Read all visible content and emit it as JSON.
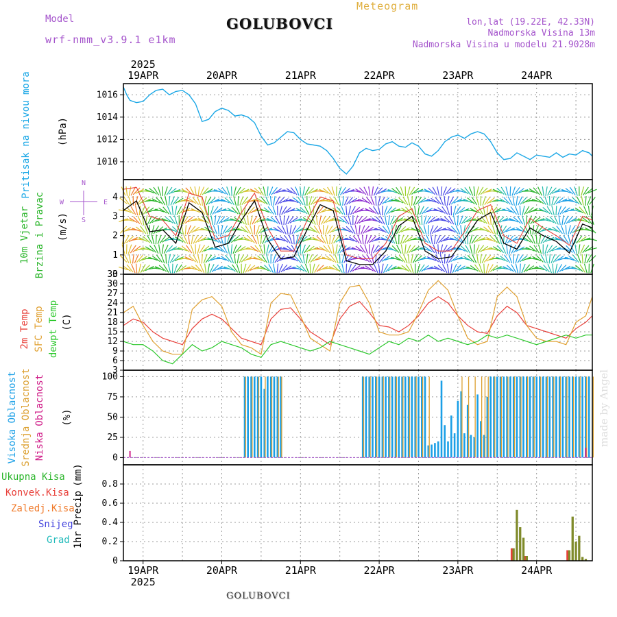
{
  "header": {
    "model_label": "Model",
    "model_name": "wrf-nmm_v3.9.1 e1km",
    "title": "GOLUBOVCI",
    "product": "Meteogram",
    "lonlat": "lon,lat (19.22E, 42.33N)",
    "elevation": "Nadmorska Visina 13m",
    "model_elevation": "Nadmorska Visina u modelu 21.9028m",
    "watermark": "made by Angel",
    "footer_station": "GOLUBOVCI"
  },
  "colors": {
    "pressure": "#1aa7e6",
    "wind_label": "#2ab52a",
    "temp2m": "#e8403a",
    "sfc_temp": "#e0a030",
    "dewpoint": "#2cc82c",
    "high_cloud": "#1a9fe6",
    "mid_cloud": "#dca030",
    "low_cloud": "#d0208a",
    "total_precip": "#2ab52a",
    "conv_precip": "#e8403a",
    "frozen_precip": "#f07a2a",
    "snow": "#4444dd",
    "hail": "#22bbbb",
    "model_text": "#a555cc",
    "meteogram_text": "#e0b040"
  },
  "chart_data": [
    {
      "type": "line",
      "panel": "pressure",
      "ylabel_main": "Pritisak na nivou mora",
      "ylabel_unit": "(hPa)",
      "ylim": [
        1008.4,
        1017.0
      ],
      "yticks": [
        1010,
        1012,
        1014,
        1016
      ],
      "x_unit": "hours since 2025-04-18 18:00 UTC",
      "xlim": [
        0,
        143
      ],
      "grid": true,
      "series": [
        {
          "color_key": "pressure",
          "x": [
            0,
            1,
            2,
            4,
            6,
            8,
            10,
            12,
            14,
            16,
            18,
            20,
            22,
            24,
            26,
            28,
            30,
            32,
            34,
            36,
            38,
            40,
            42,
            44,
            46,
            48,
            50,
            52,
            54,
            56,
            58,
            60,
            62,
            64,
            66,
            68,
            70,
            72,
            74,
            76,
            78,
            80,
            82,
            84,
            86,
            88,
            90,
            92,
            94,
            96,
            98,
            100,
            102,
            104,
            106,
            108,
            110,
            112,
            114,
            116,
            118,
            120,
            122,
            124,
            126,
            128,
            130,
            132,
            134,
            136,
            138,
            140,
            142,
            143
          ],
          "y": [
            1016.7,
            1016.0,
            1015.5,
            1015.3,
            1015.4,
            1016.0,
            1016.4,
            1016.5,
            1016.0,
            1016.3,
            1016.4,
            1016.0,
            1015.2,
            1013.6,
            1013.8,
            1014.5,
            1014.8,
            1014.6,
            1014.1,
            1014.2,
            1014.0,
            1013.5,
            1012.3,
            1011.5,
            1011.7,
            1012.2,
            1012.7,
            1012.6,
            1012.0,
            1011.6,
            1011.5,
            1011.4,
            1011.0,
            1010.3,
            1009.4,
            1008.9,
            1009.6,
            1010.8,
            1011.2,
            1011.0,
            1011.1,
            1011.6,
            1011.8,
            1011.4,
            1011.3,
            1011.7,
            1011.4,
            1010.7,
            1010.5,
            1011.0,
            1011.8,
            1012.2,
            1012.4,
            1012.1,
            1012.5,
            1012.7,
            1012.5,
            1011.8,
            1010.8,
            1010.2,
            1010.3,
            1010.8,
            1010.5,
            1010.2,
            1010.6,
            1010.5,
            1010.4,
            1010.8,
            1010.4,
            1010.7,
            1010.6,
            1011.0,
            1010.8,
            1010.5
          ]
        }
      ]
    },
    {
      "type": "line",
      "panel": "wind",
      "ylabel_main": "10m Vjetar",
      "ylabel_main2": "Brzina i Pravac",
      "ylabel_unit": "(m/s)",
      "compass": {
        "n": "N",
        "s": "S",
        "e": "E",
        "w": "W"
      },
      "ylim": [
        0,
        4.9
      ],
      "yticks": [
        0,
        1,
        2,
        3,
        4
      ],
      "x_unit": "hours since 2025-04-18 18:00 UTC",
      "xlim": [
        0,
        143
      ],
      "grid": true,
      "series": [
        {
          "name": "speed",
          "color": "#000000",
          "x": [
            0,
            4,
            8,
            12,
            16,
            20,
            24,
            28,
            32,
            36,
            40,
            44,
            48,
            52,
            56,
            60,
            64,
            68,
            72,
            76,
            80,
            84,
            88,
            92,
            96,
            100,
            104,
            108,
            112,
            116,
            120,
            124,
            128,
            132,
            136,
            140,
            143
          ],
          "y": [
            3.3,
            3.8,
            2.2,
            2.3,
            1.6,
            3.7,
            3.2,
            1.4,
            1.6,
            2.8,
            3.8,
            1.8,
            0.8,
            0.9,
            2.3,
            3.6,
            3.3,
            0.7,
            0.5,
            0.5,
            1.2,
            2.5,
            3.0,
            1.2,
            0.8,
            0.9,
            1.8,
            2.8,
            3.2,
            1.6,
            1.3,
            2.4,
            2.0,
            1.7,
            1.1,
            2.6,
            2.4
          ]
        },
        {
          "name": "gust",
          "color": "#e8403a",
          "x": [
            0,
            4,
            8,
            12,
            16,
            20,
            24,
            28,
            32,
            36,
            40,
            44,
            48,
            52,
            56,
            60,
            64,
            68,
            72,
            76,
            80,
            84,
            88,
            92,
            96,
            100,
            104,
            108,
            112,
            116,
            120,
            124,
            128,
            132,
            136,
            140,
            143
          ],
          "y": [
            4.4,
            4.5,
            3.0,
            2.8,
            2.0,
            4.2,
            4.0,
            1.8,
            2.0,
            3.2,
            4.2,
            2.4,
            1.2,
            1.2,
            2.8,
            4.0,
            3.8,
            1.0,
            0.8,
            0.8,
            1.6,
            3.0,
            3.4,
            1.6,
            1.2,
            1.2,
            2.2,
            3.3,
            3.6,
            2.0,
            1.6,
            2.9,
            2.4,
            2.0,
            1.5,
            3.0,
            2.8
          ]
        }
      ]
    },
    {
      "type": "line",
      "panel": "temperature",
      "ylabel_main": "2m Temp",
      "ylabel_main2": "SFC Temp",
      "ylabel_main3": "dewpt Temp",
      "ylabel_unit": "(C)",
      "ylim": [
        3,
        33
      ],
      "yticks": [
        3,
        6,
        9,
        12,
        15,
        18,
        21,
        24,
        27,
        30,
        33
      ],
      "x_unit": "hours since 2025-04-18 18:00 UTC",
      "xlim": [
        0,
        143
      ],
      "grid": true,
      "series": [
        {
          "name": "2m Temp",
          "color_key": "temp2m",
          "x": [
            0,
            3,
            6,
            9,
            12,
            15,
            18,
            21,
            24,
            27,
            30,
            33,
            36,
            39,
            42,
            45,
            48,
            51,
            54,
            57,
            60,
            63,
            66,
            69,
            72,
            75,
            78,
            81,
            84,
            87,
            90,
            93,
            96,
            99,
            102,
            105,
            108,
            111,
            114,
            117,
            120,
            123,
            126,
            129,
            132,
            135,
            138,
            141,
            143
          ],
          "y": [
            17,
            19,
            18,
            15,
            13,
            12,
            11,
            16,
            19,
            20.5,
            19,
            16,
            13,
            12,
            11,
            19,
            22,
            22.5,
            19,
            15,
            13,
            11,
            19,
            23,
            24.5,
            21,
            17,
            16.5,
            15,
            17,
            20,
            24,
            26,
            24,
            20,
            17,
            15,
            14.5,
            20,
            23,
            21,
            17,
            16,
            15,
            14,
            13,
            16,
            18,
            20
          ]
        },
        {
          "name": "SFC Temp",
          "color_key": "sfc_temp",
          "x": [
            0,
            3,
            6,
            9,
            12,
            15,
            18,
            21,
            24,
            27,
            30,
            33,
            36,
            39,
            42,
            45,
            48,
            51,
            54,
            57,
            60,
            63,
            66,
            69,
            72,
            75,
            78,
            81,
            84,
            87,
            90,
            93,
            96,
            99,
            102,
            105,
            108,
            111,
            114,
            117,
            120,
            123,
            126,
            129,
            132,
            135,
            138,
            141,
            143
          ],
          "y": [
            21,
            23,
            17,
            12,
            9,
            8,
            8,
            22,
            25,
            26,
            23,
            15,
            11,
            10,
            8,
            24,
            27,
            26.5,
            20,
            13,
            11,
            9,
            24,
            29,
            29.5,
            24,
            15,
            14,
            14,
            15,
            21,
            28,
            31,
            28,
            20,
            13,
            11,
            12,
            26,
            29,
            26,
            17,
            13,
            12,
            12,
            11,
            18,
            20,
            26
          ]
        },
        {
          "name": "dewpt Temp",
          "color_key": "dewpoint",
          "x": [
            0,
            3,
            6,
            9,
            12,
            15,
            18,
            21,
            24,
            27,
            30,
            33,
            36,
            39,
            42,
            45,
            48,
            51,
            54,
            57,
            60,
            63,
            66,
            69,
            72,
            75,
            78,
            81,
            84,
            87,
            90,
            93,
            96,
            99,
            102,
            105,
            108,
            111,
            114,
            117,
            120,
            123,
            126,
            129,
            132,
            135,
            138,
            141,
            143
          ],
          "y": [
            12,
            11,
            11,
            9,
            6,
            5,
            8,
            11,
            9,
            10,
            12,
            11,
            10,
            8,
            7,
            11,
            12,
            11,
            10,
            9,
            10,
            12,
            11,
            10,
            9,
            8,
            10,
            12,
            11,
            13,
            12,
            14,
            12,
            13,
            12,
            11,
            12,
            14,
            13,
            14,
            13,
            12,
            11,
            12,
            13,
            14,
            13,
            14,
            14
          ]
        }
      ]
    },
    {
      "type": "bar",
      "panel": "cloud",
      "ylabel_main": "Visoka Oblacnost",
      "ylabel_main2": "Srednja Oblacnost",
      "ylabel_main3": "Niska Oblacnost",
      "ylabel_unit": "(%)",
      "ylim": [
        0,
        100
      ],
      "yticks": [
        0,
        25,
        50,
        75,
        100
      ],
      "x_unit": "hours since 2025-04-18 18:00 UTC",
      "xlim": [
        0,
        143
      ],
      "grid": true,
      "high": {
        "x": [
          37,
          38,
          39,
          40,
          41,
          42,
          43,
          44,
          45,
          46,
          47,
          48,
          73,
          74,
          75,
          76,
          77,
          78,
          79,
          80,
          81,
          82,
          83,
          84,
          85,
          86,
          87,
          88,
          89,
          90,
          91,
          92,
          93,
          94,
          95,
          96,
          97,
          98,
          99,
          100,
          101,
          102,
          103,
          104,
          105,
          106,
          107,
          108,
          109,
          110,
          111,
          112,
          113,
          114,
          115,
          116,
          117,
          118,
          119,
          120,
          121,
          122,
          123,
          124,
          125,
          126,
          127,
          128,
          129,
          130,
          131,
          132,
          133,
          134,
          135,
          136,
          137,
          138,
          139,
          140,
          141,
          142
        ],
        "y": [
          100,
          100,
          100,
          100,
          100,
          100,
          85,
          100,
          100,
          100,
          100,
          100,
          100,
          100,
          100,
          100,
          100,
          100,
          100,
          100,
          100,
          100,
          100,
          100,
          100,
          100,
          100,
          100,
          100,
          100,
          100,
          100,
          15,
          16,
          18,
          20,
          95,
          40,
          20,
          52,
          30,
          70,
          82,
          30,
          65,
          28,
          25,
          78,
          45,
          28,
          75,
          100,
          100,
          100,
          100,
          100,
          100,
          100,
          100,
          100,
          100,
          100,
          100,
          100,
          100,
          100,
          100,
          100,
          100,
          100,
          100,
          100,
          100,
          100,
          100,
          100,
          100,
          100,
          100,
          100,
          100,
          100
        ]
      },
      "mid": {
        "x": [
          37,
          39,
          41,
          43,
          45,
          47,
          48,
          73,
          75,
          77,
          79,
          81,
          83,
          85,
          87,
          89,
          91,
          93,
          103,
          105,
          107,
          109,
          110,
          111,
          113,
          115,
          117,
          119,
          121,
          123,
          125,
          127,
          129,
          131,
          133,
          135,
          137,
          139,
          141,
          143
        ],
        "y": [
          100,
          100,
          100,
          100,
          100,
          100,
          100,
          100,
          100,
          100,
          100,
          100,
          100,
          100,
          100,
          100,
          100,
          100,
          100,
          100,
          100,
          100,
          100,
          100,
          100,
          100,
          100,
          100,
          100,
          100,
          100,
          100,
          100,
          100,
          100,
          100,
          100,
          100,
          100,
          100
        ]
      },
      "low": {
        "x": [
          2,
          141
        ],
        "y": [
          8,
          12
        ]
      }
    },
    {
      "type": "bar",
      "panel": "precip",
      "ylabel_main": "1hr Precip",
      "ylabel_unit": "(mm)",
      "legend": [
        "Ukupna Kisa",
        "Konvek.Kisa",
        "Zaledj.Kisa",
        "Snijeg",
        "Grad"
      ],
      "ylim": [
        0,
        1.0
      ],
      "yticks": [
        0,
        0.2,
        0.4,
        0.6,
        0.8
      ],
      "x_unit": "hours since 2025-04-18 18:00 UTC",
      "xlim": [
        0,
        143
      ],
      "grid": true,
      "total": {
        "x": [
          119,
          120,
          121,
          122,
          123,
          136,
          137,
          138,
          139,
          140,
          141
        ],
        "y": [
          0.13,
          0.53,
          0.35,
          0.24,
          0.05,
          0.11,
          0.46,
          0.2,
          0.26,
          0.04,
          0.02
        ]
      },
      "convective": {
        "x": [
          119,
          123,
          136
        ],
        "y": [
          0.13,
          0.05,
          0.11
        ]
      }
    }
  ],
  "xaxis": {
    "day_labels": [
      "19APR",
      "20APR",
      "21APR",
      "22APR",
      "23APR",
      "24APR"
    ],
    "day_x": [
      6,
      30,
      54,
      78,
      102,
      126
    ],
    "year": "2025"
  }
}
